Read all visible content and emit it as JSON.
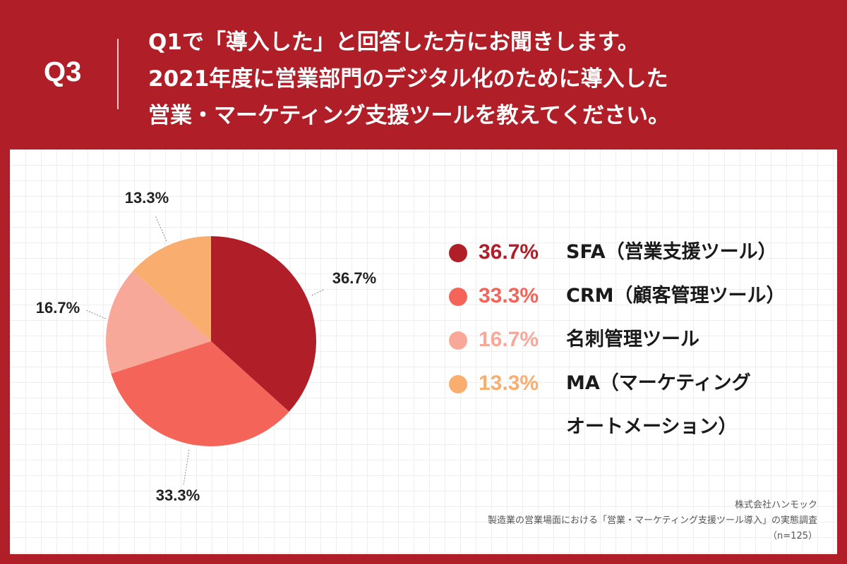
{
  "header": {
    "question_number": "Q3",
    "question_lines": [
      "Q1で「導入した」と回答した方にお聞きします。",
      "2021年度に営業部門のデジタル化のために導入した",
      "営業・マーケティング支援ツールを教えてください。"
    ]
  },
  "chart_data": {
    "type": "pie",
    "title": "",
    "slices": [
      {
        "label": "SFA（営業支援ツール）",
        "value": 36.7,
        "display": "36.7%",
        "color": "#b01e28"
      },
      {
        "label": "CRM（顧客管理ツール）",
        "value": 33.3,
        "display": "33.3%",
        "color": "#f46459"
      },
      {
        "label": "名刺管理ツール",
        "value": 16.7,
        "display": "16.7%",
        "color": "#f8a898"
      },
      {
        "label": "MA（マーケティングオートメーション）",
        "value": 13.3,
        "display": "13.3%",
        "color": "#f9ad6e"
      }
    ],
    "start_angle": "12 o'clock",
    "direction": "clockwise",
    "legend_position": "right"
  },
  "legend": {
    "items": [
      {
        "percent": "36.7%",
        "name_lines": [
          "SFA（営業支援ツール）"
        ],
        "color": "#b01e28",
        "text_color": "#b01e28"
      },
      {
        "percent": "33.3%",
        "name_lines": [
          "CRM（顧客管理ツール）"
        ],
        "color": "#f46459",
        "text_color": "#f46459"
      },
      {
        "percent": "16.7%",
        "name_lines": [
          "名刺管理ツール"
        ],
        "color": "#f8a898",
        "text_color": "#f8a898"
      },
      {
        "percent": "13.3%",
        "name_lines": [
          "MA（マーケティング",
          "オートメーション）"
        ],
        "color": "#f9ad6e",
        "text_color": "#f9ad6e"
      }
    ]
  },
  "source": {
    "company": "株式会社ハンモック",
    "survey": "製造業の営業場面における「営業・マーケティング支援ツール導入」の実態調査",
    "sample": "（n=125）"
  }
}
